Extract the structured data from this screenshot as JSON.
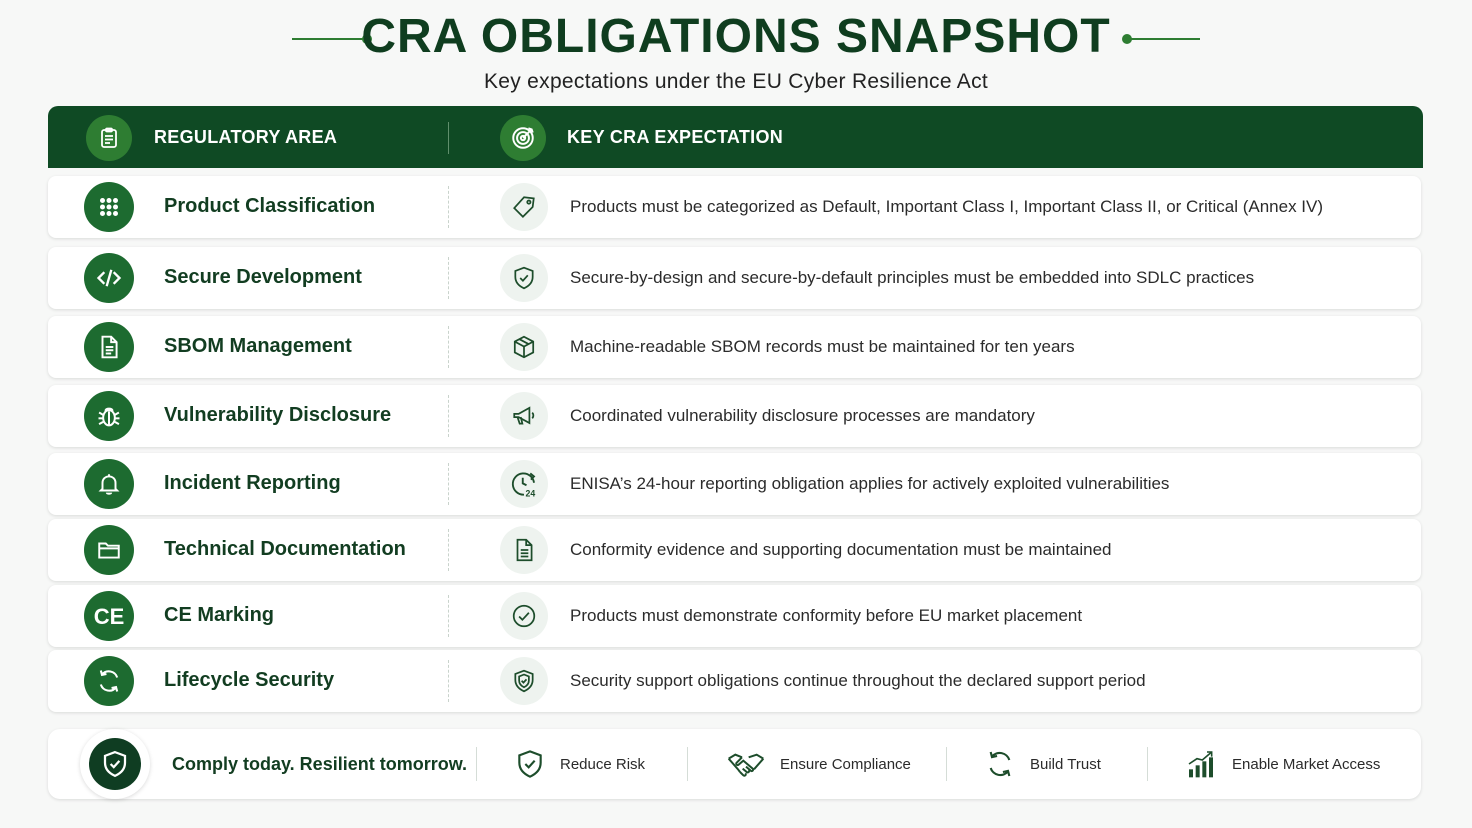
{
  "header": {
    "title": "CRA OBLIGATIONS SNAPSHOT",
    "subtitle": "Key expectations under the EU Cyber Resilience Act"
  },
  "table": {
    "col_area": "REGULATORY AREA",
    "col_expectation": "KEY CRA EXPECTATION",
    "rows": [
      {
        "area": "Product Classification",
        "area_icon": "grid-icon",
        "exp_icon": "tag-icon",
        "expectation": "Products must be categorized as Default, Important Class I, Important Class II, or Critical (Annex IV)"
      },
      {
        "area": "Secure Development",
        "area_icon": "code-icon",
        "exp_icon": "shield-check-icon",
        "expectation": "Secure-by-design and secure-by-default principles must be embedded into SDLC practices"
      },
      {
        "area": "SBOM Management",
        "area_icon": "document-icon",
        "exp_icon": "package-icon",
        "expectation": "Machine-readable SBOM records must be maintained for ten years"
      },
      {
        "area": "Vulnerability Disclosure",
        "area_icon": "bug-icon",
        "exp_icon": "megaphone-icon",
        "expectation": "Coordinated vulnerability disclosure processes are mandatory"
      },
      {
        "area": "Incident Reporting",
        "area_icon": "bell-icon",
        "exp_icon": "clock-24-icon",
        "exp_icon_text": "24",
        "expectation": "ENISA’s 24-hour reporting obligation applies for actively exploited vulnerabilities"
      },
      {
        "area": "Technical Documentation",
        "area_icon": "folder-icon",
        "exp_icon": "file-text-icon",
        "expectation": "Conformity evidence and supporting documentation must be maintained"
      },
      {
        "area": "CE Marking",
        "area_icon": "ce-mark-icon",
        "area_icon_text": "CE",
        "exp_icon": "check-circle-icon",
        "expectation": "Products must demonstrate conformity before EU market placement"
      },
      {
        "area": "Lifecycle Security",
        "area_icon": "cycle-icon",
        "exp_icon": "shield-lock-icon",
        "expectation": "Security support obligations continue throughout the declared support period"
      }
    ]
  },
  "footer": {
    "tagline": "Comply today. Resilient tomorrow.",
    "items": [
      {
        "label": "Reduce Risk",
        "icon": "shield-check-icon"
      },
      {
        "label": "Ensure Compliance",
        "icon": "handshake-icon"
      },
      {
        "label": "Build Trust",
        "icon": "cycle-icon"
      },
      {
        "label": "Enable Market Access",
        "icon": "growth-chart-icon"
      }
    ]
  },
  "colors": {
    "brand_dark": "#0f4a24",
    "brand": "#1d6b30",
    "accent": "#2e7d32"
  }
}
